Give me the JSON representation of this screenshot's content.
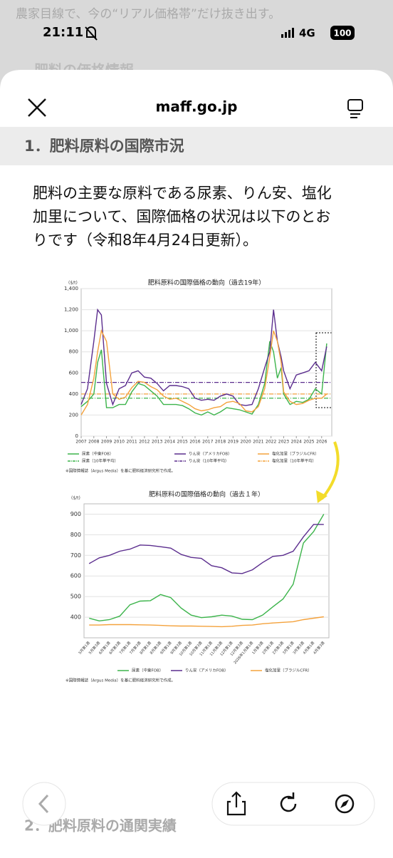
{
  "status_bar": {
    "time": "21:11",
    "network": "4G",
    "battery": "100"
  },
  "background": {
    "caption": "農家目線で、今の“リアル価格帯”だけ抜き出す。",
    "heading": "肥料の価格情報"
  },
  "header": {
    "url": "maff.go.jp"
  },
  "section_1": {
    "title": "1．肥料原料の国際市況",
    "paragraph": [
      "肥料の主要な原料である尿素、りん安、塩化",
      "加里について、国際価格の状況は以下のとお",
      "りです（令和8年4月24日更新）。"
    ]
  },
  "charts": [
    {
      "type": "line",
      "title": "肥料原料の国際価格の動向（過去19年）",
      "y_unit": "($/t)",
      "x": [
        2007,
        2007.5,
        2008,
        2008.3,
        2008.6,
        2009,
        2009.5,
        2010,
        2010.5,
        2011,
        2011.5,
        2012,
        2012.5,
        2013,
        2013.5,
        2014,
        2014.5,
        2015,
        2015.5,
        2016,
        2016.5,
        2017,
        2017.5,
        2018,
        2018.5,
        2019,
        2019.5,
        2020,
        2020.5,
        2021,
        2021.5,
        2021.9,
        2022.2,
        2022.5,
        2022.8,
        2023,
        2023.5,
        2024,
        2024.5,
        2025,
        2025.5,
        2026,
        2026.4
      ],
      "xlim": [
        2007,
        2026.8
      ],
      "xticks": [
        2007,
        2008,
        2009,
        2010,
        2011,
        2012,
        2013,
        2014,
        2015,
        2016,
        2017,
        2018,
        2019,
        2020,
        2021,
        2022,
        2023,
        2024,
        2025,
        2026
      ],
      "ylim": [
        0,
        1400
      ],
      "yticks": [
        0,
        200,
        400,
        600,
        800,
        {
          "value": 1000,
          "label": "1,000"
        },
        {
          "value": 1200,
          "label": "1,200"
        },
        {
          "value": 1400,
          "label": "1,400"
        }
      ],
      "grid": true,
      "series": [
        {
          "name": "尿素（中東FOB）",
          "color": "#3cb44b",
          "values": [
            280,
            330,
            400,
            700,
            820,
            270,
            270,
            300,
            300,
            420,
            500,
            480,
            430,
            380,
            300,
            300,
            300,
            290,
            260,
            220,
            200,
            230,
            200,
            230,
            270,
            260,
            250,
            230,
            210,
            300,
            500,
            900,
            800,
            550,
            650,
            400,
            300,
            330,
            320,
            350,
            450,
            400,
            880
          ]
        },
        {
          "name": "りん安（アメリカFOB）",
          "color": "#5b2d8e",
          "values": [
            300,
            450,
            900,
            1200,
            1150,
            500,
            300,
            450,
            480,
            600,
            620,
            560,
            550,
            500,
            430,
            480,
            480,
            470,
            450,
            360,
            340,
            350,
            340,
            380,
            400,
            380,
            300,
            290,
            300,
            450,
            650,
            800,
            1200,
            900,
            750,
            620,
            450,
            580,
            600,
            620,
            700,
            620,
            850
          ]
        },
        {
          "name": "塩化加里（ブラジルCFR）",
          "color": "#f4a23c",
          "values": [
            200,
            300,
            550,
            800,
            1000,
            900,
            400,
            350,
            370,
            460,
            520,
            510,
            470,
            440,
            380,
            350,
            360,
            330,
            300,
            260,
            240,
            250,
            270,
            280,
            320,
            330,
            310,
            240,
            230,
            280,
            450,
            750,
            1000,
            900,
            700,
            420,
            330,
            300,
            310,
            340,
            360,
            360,
            400
          ]
        }
      ],
      "average_lines": [
        {
          "name": "尿素（10年単平均）",
          "color": "#3cb44b",
          "value": 360
        },
        {
          "name": "りん安（10年単平均）",
          "color": "#5b2d8e",
          "value": 510
        },
        {
          "name": "塩化加里（10年単平均）",
          "color": "#f4a23c",
          "value": 400
        }
      ],
      "note": "※国際情報誌（Argus Media）を基に肥料経済研究所で作成。"
    },
    {
      "type": "line",
      "title": "肥料原料の国際価格の動向（過去１年）",
      "y_unit": "($/t)",
      "categories": [
        "5月第1週",
        "5月第3週",
        "6月第1週",
        "6月第3週",
        "7月第1週",
        "7月第3週",
        "8月第1週",
        "8月第3週",
        "9月第1週",
        "9月第3週",
        "10月第1週",
        "10月第3週",
        "11月第1週",
        "11月第3週",
        "12月第1週",
        "12月第3週",
        "2026年1月第1週",
        "1月第3週",
        "2月第1週",
        "2月第3週",
        "3月第1週",
        "3月第3週",
        "4月第1週",
        "4月第3週"
      ],
      "ylim": [
        300,
        950
      ],
      "yticks": [
        400,
        500,
        600,
        700,
        800,
        900
      ],
      "grid": true,
      "series": [
        {
          "name": "尿素（中東FOB）",
          "color": "#3cb44b",
          "values": [
            395,
            382,
            388,
            405,
            460,
            478,
            480,
            510,
            495,
            445,
            410,
            398,
            402,
            410,
            405,
            390,
            388,
            410,
            450,
            488,
            560,
            760,
            815,
            900
          ]
        },
        {
          "name": "りん安（アメリカFOB）",
          "color": "#5b2d8e",
          "values": [
            660,
            688,
            700,
            720,
            730,
            750,
            748,
            742,
            735,
            705,
            690,
            685,
            650,
            640,
            615,
            612,
            630,
            665,
            695,
            700,
            720,
            790,
            850,
            850
          ]
        },
        {
          "name": "塩化加里（ブラジルCFR）",
          "color": "#f4a23c",
          "values": [
            362,
            362,
            364,
            364,
            364,
            363,
            362,
            360,
            358,
            357,
            357,
            356,
            355,
            354,
            356,
            360,
            362,
            368,
            372,
            375,
            378,
            388,
            395,
            402
          ]
        }
      ],
      "note": "※国際情報誌（Argus Media）を基に肥料経済研究所で作成。"
    }
  ],
  "section_2": {
    "title": "2．肥料原料の通関実績"
  }
}
